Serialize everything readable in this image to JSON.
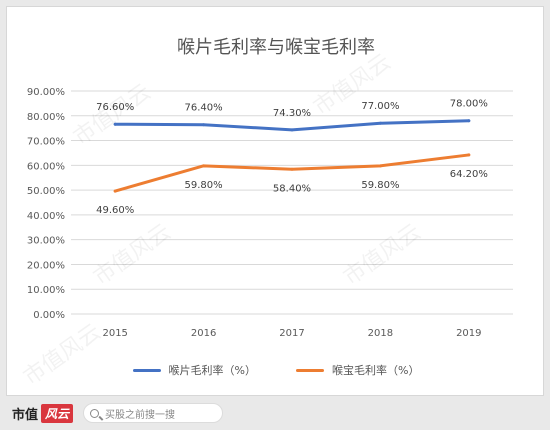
{
  "chart_data": {
    "type": "line",
    "title": "喉片毛利率与喉宝毛利率",
    "categories": [
      "2015",
      "2016",
      "2017",
      "2018",
      "2019"
    ],
    "y_ticks": [
      "0.00%",
      "10.00%",
      "20.00%",
      "30.00%",
      "40.00%",
      "50.00%",
      "60.00%",
      "70.00%",
      "80.00%",
      "90.00%"
    ],
    "ylim": [
      0,
      90
    ],
    "grid": true,
    "legend_position": "bottom",
    "series": [
      {
        "name": "喉片毛利率（%）",
        "color": "#4472c4",
        "values": [
          76.6,
          76.4,
          74.3,
          77.0,
          78.0
        ],
        "labels": [
          "76.60%",
          "76.40%",
          "74.30%",
          "77.00%",
          "78.00%"
        ]
      },
      {
        "name": "喉宝毛利率（%）",
        "color": "#ed7d31",
        "values": [
          49.6,
          59.8,
          58.4,
          59.8,
          64.2
        ],
        "labels": [
          "49.60%",
          "59.80%",
          "58.40%",
          "59.80%",
          "64.20%"
        ]
      }
    ]
  },
  "footer": {
    "brand": "市值",
    "brand_mark": "风云",
    "search_placeholder": "买股之前搜一搜",
    "icon": "search-icon"
  },
  "watermark": "市值风云"
}
